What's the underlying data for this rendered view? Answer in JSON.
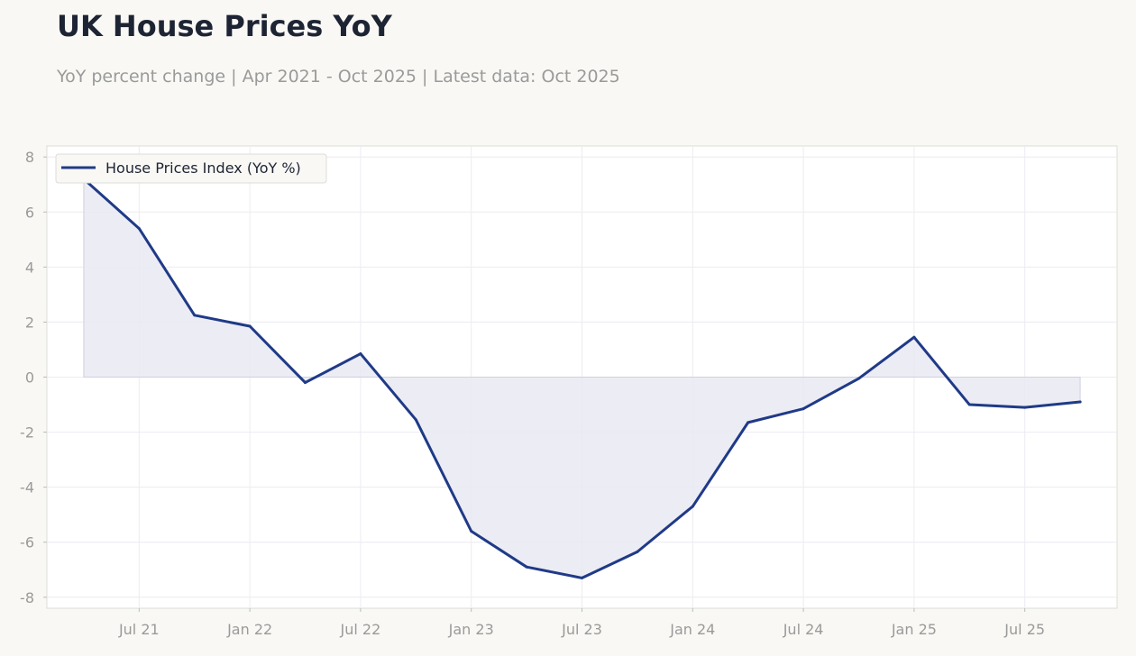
{
  "header": {
    "title": "UK House Prices YoY",
    "subtitle": "YoY percent change | Apr 2021 - Oct 2025 | Latest data: Oct 2025"
  },
  "colors": {
    "line": "#1f3a87",
    "fill": "#e9e9f2",
    "grid": "#ececf2",
    "background": "#f9f8f5",
    "plot_background": "#ffffff"
  },
  "chart_data": {
    "type": "line",
    "title": "UK House Prices YoY",
    "xlabel": "",
    "ylabel": "",
    "x": [
      "2021-04",
      "2021-07",
      "2021-10",
      "2022-01",
      "2022-04",
      "2022-07",
      "2022-10",
      "2023-01",
      "2023-04",
      "2023-07",
      "2023-10",
      "2024-01",
      "2024-04",
      "2024-07",
      "2024-10",
      "2025-01",
      "2025-04",
      "2025-07",
      "2025-10"
    ],
    "series": [
      {
        "name": "House Prices Index (YoY %)",
        "values": [
          7.2,
          5.4,
          2.25,
          1.85,
          -0.2,
          0.85,
          -1.55,
          -5.6,
          -6.9,
          -7.3,
          -6.35,
          -4.7,
          -1.65,
          -1.15,
          -0.05,
          1.45,
          -1.0,
          -1.1,
          -0.9
        ]
      }
    ],
    "ylim": [
      -8.4,
      8.4
    ],
    "yticks": [
      8,
      6,
      4,
      2,
      0,
      -2,
      -4,
      -6,
      -8
    ],
    "ytick_labels": [
      "8",
      "6",
      "4",
      "2",
      "0",
      "-2",
      "-4",
      "-6",
      "-8"
    ],
    "xticks": [
      "2021-07",
      "2022-01",
      "2022-07",
      "2023-01",
      "2023-07",
      "2024-01",
      "2024-07",
      "2025-01",
      "2025-07"
    ],
    "xtick_labels": [
      "Jul 21",
      "Jan 22",
      "Jul 22",
      "Jan 23",
      "Jul 23",
      "Jan 24",
      "Jul 24",
      "Jan 25",
      "Jul 25"
    ],
    "xlim": [
      "2021-02",
      "2025-12"
    ],
    "grid": true,
    "legend": "top-left",
    "fill_to_zero": true
  }
}
